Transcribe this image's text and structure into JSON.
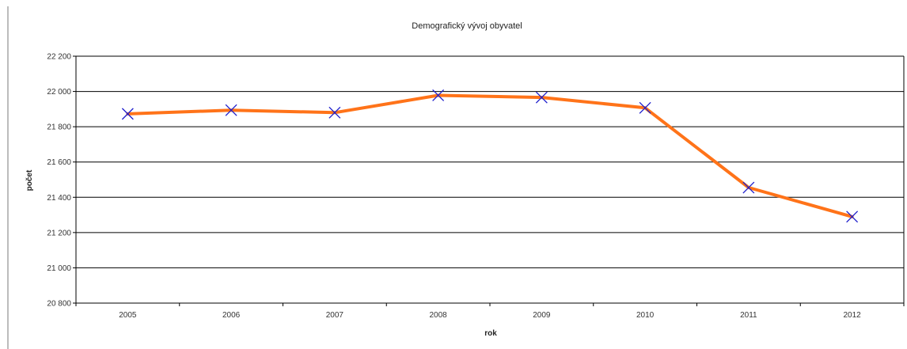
{
  "chart_data": {
    "type": "line",
    "title": "Demografický vývoj obyvatel",
    "xlabel": "rok",
    "ylabel": "počet",
    "categories": [
      "2005",
      "2006",
      "2007",
      "2008",
      "2009",
      "2010",
      "2011",
      "2012"
    ],
    "series": [
      {
        "values": [
          21873,
          21894,
          21880,
          21978,
          21966,
          21907,
          21455,
          21290
        ]
      }
    ],
    "ylim": [
      20800,
      22200
    ],
    "yticks": [
      20800,
      21000,
      21200,
      21400,
      21600,
      21800,
      22000,
      22200
    ],
    "ytick_labels": [
      "20 800",
      "21 000",
      "21 200",
      "21 400",
      "21 600",
      "21 800",
      "22 000",
      "22 200"
    ],
    "grid": true,
    "line_color": "#ff7319",
    "marker_color": "#1f1fcc",
    "marker": "x"
  }
}
